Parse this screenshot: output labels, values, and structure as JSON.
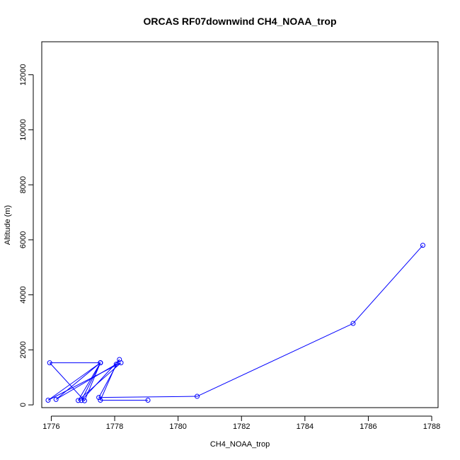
{
  "chart_data": {
    "type": "line",
    "title": "ORCAS RF07downwind CH4_NOAA_trop",
    "xlabel": "CH4_NOAA_trop",
    "ylabel": "Altitude (m)",
    "xlim": [
      1775.7,
      1788.2
    ],
    "ylim": [
      -100,
      13200
    ],
    "x_ticks": [
      1776,
      1778,
      1780,
      1782,
      1784,
      1786,
      1788
    ],
    "y_ticks": [
      0,
      2000,
      4000,
      6000,
      8000,
      10000,
      12000
    ],
    "grid": false,
    "series": [
      {
        "color": "#0000ff",
        "marker": "open-circle",
        "points": [
          {
            "x": 1787.72,
            "y": 5800
          },
          {
            "x": 1785.52,
            "y": 2960
          },
          {
            "x": 1780.6,
            "y": 310
          },
          {
            "x": 1777.5,
            "y": 270
          },
          {
            "x": 1778.15,
            "y": 1650
          },
          {
            "x": 1776.95,
            "y": 160
          },
          {
            "x": 1777.55,
            "y": 1530
          },
          {
            "x": 1775.95,
            "y": 1530
          },
          {
            "x": 1777.05,
            "y": 150
          },
          {
            "x": 1777.55,
            "y": 1530
          },
          {
            "x": 1775.9,
            "y": 170
          },
          {
            "x": 1778.2,
            "y": 1530
          },
          {
            "x": 1776.85,
            "y": 160
          },
          {
            "x": 1777.55,
            "y": 1530
          },
          {
            "x": 1776.15,
            "y": 200
          },
          {
            "x": 1778.05,
            "y": 1480
          },
          {
            "x": 1777.55,
            "y": 170
          },
          {
            "x": 1779.05,
            "y": 170
          }
        ]
      }
    ]
  }
}
